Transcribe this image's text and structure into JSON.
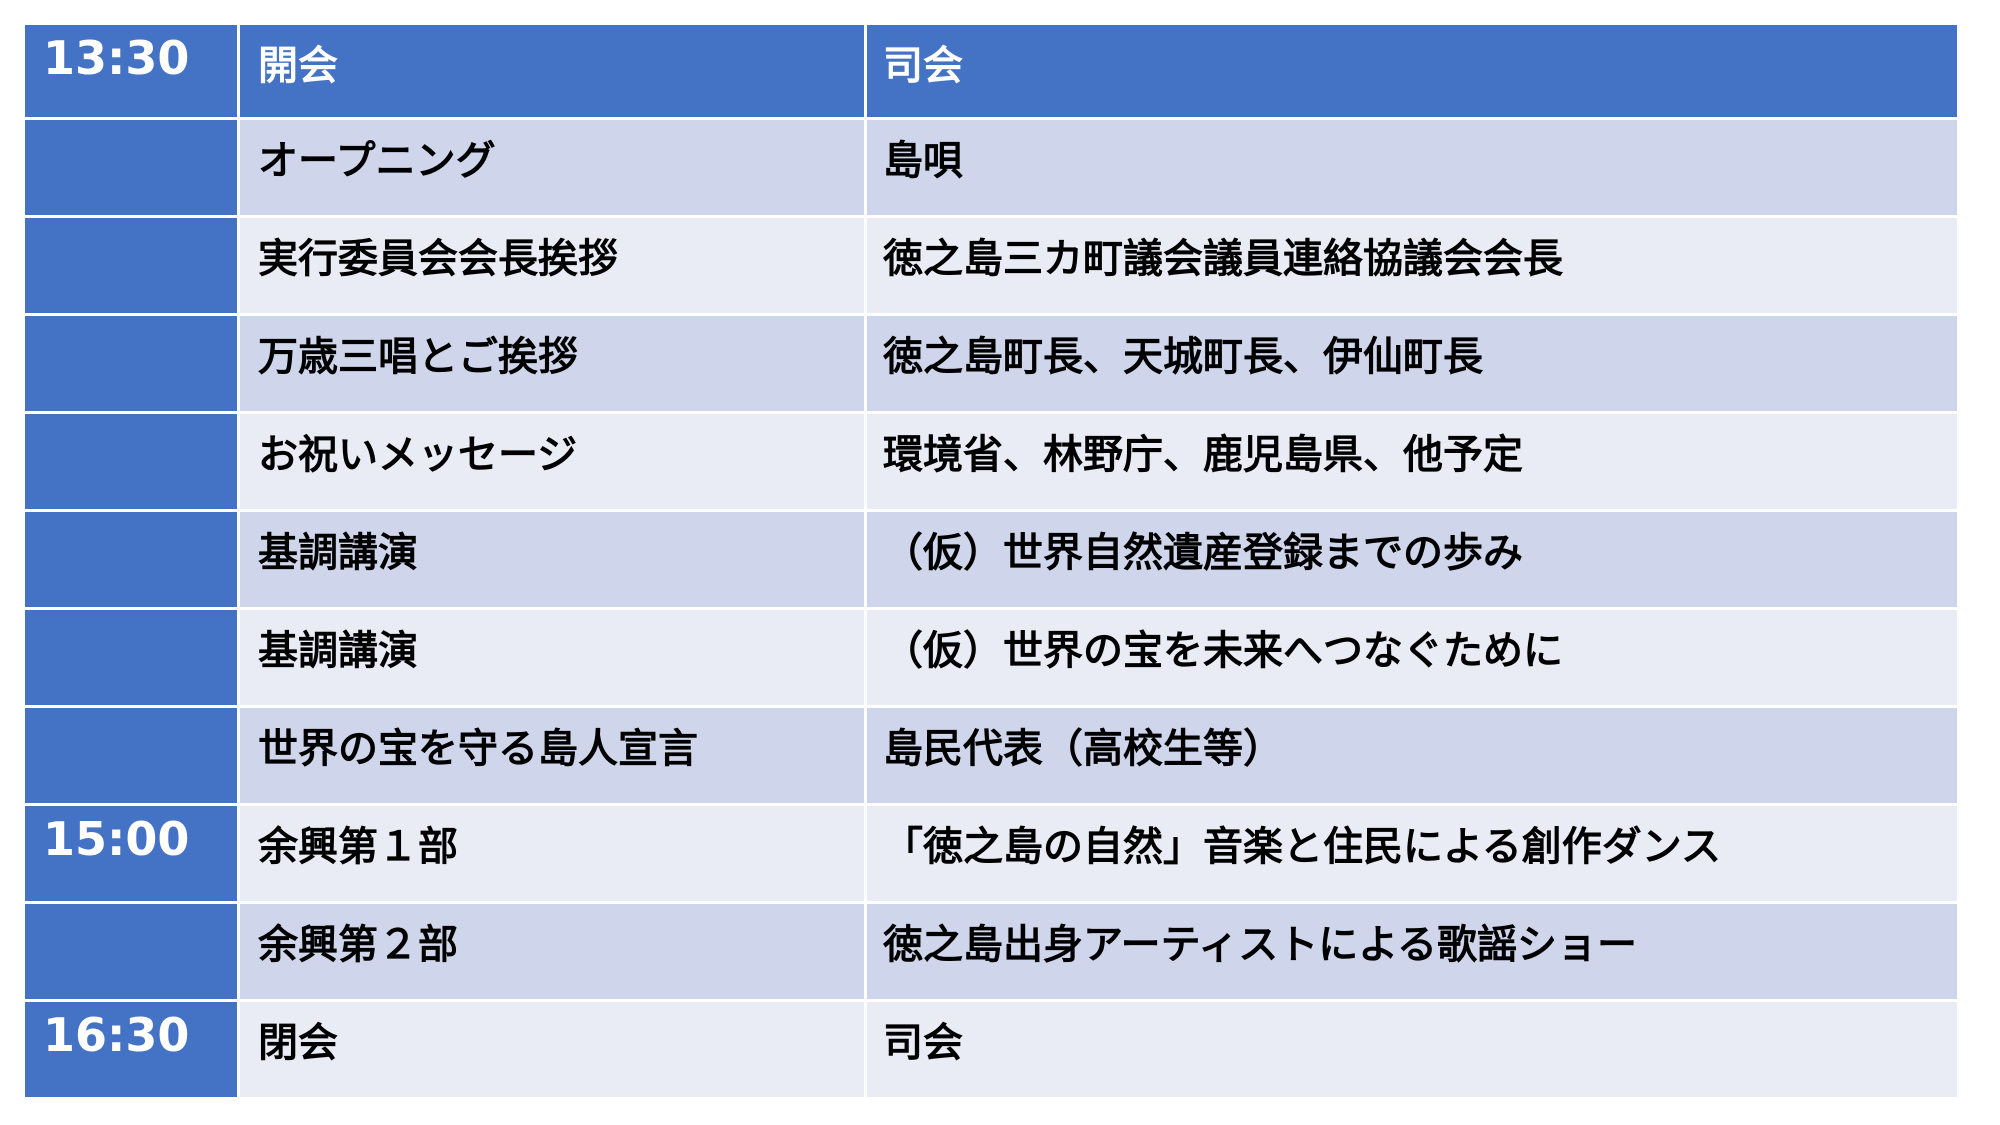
{
  "colors": {
    "header": "#4472c4",
    "time_column": "#4472c4",
    "row_dark": "#cfd5ea",
    "row_light": "#e9ebf5"
  },
  "rows": [
    {
      "time": "13:30",
      "item": "開会",
      "detail": "司会"
    },
    {
      "time": "",
      "item": "オープニング",
      "detail": "島唄"
    },
    {
      "time": "",
      "item": "実行委員会会長挨拶",
      "detail": "徳之島三カ町議会議員連絡協議会会長"
    },
    {
      "time": "",
      "item": "万歳三唱とご挨拶",
      "detail": "徳之島町長、天城町長、伊仙町長"
    },
    {
      "time": "",
      "item": "お祝いメッセージ",
      "detail": "環境省、林野庁、鹿児島県、他予定"
    },
    {
      "time": "",
      "item": "基調講演",
      "detail": "（仮）世界自然遺産登録までの歩み"
    },
    {
      "time": "",
      "item": "基調講演",
      "detail": "（仮）世界の宝を未来へつなぐために"
    },
    {
      "time": "",
      "item": "世界の宝を守る島人宣言",
      "detail": "島民代表（高校生等）"
    },
    {
      "time": "15:00",
      "item": "余興第１部",
      "detail": "「徳之島の自然」音楽と住民による創作ダンス"
    },
    {
      "time": "",
      "item": "余興第２部",
      "detail": "徳之島出身アーティストによる歌謡ショー"
    },
    {
      "time": "16:30",
      "item": "閉会",
      "detail": "司会"
    }
  ]
}
